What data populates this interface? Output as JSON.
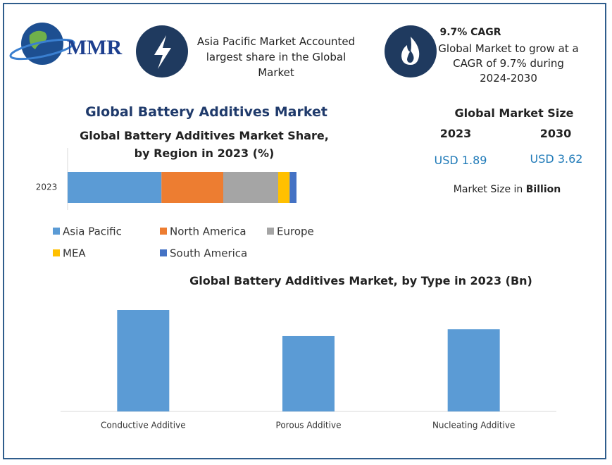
{
  "logo": "MMR",
  "highlights": [
    {
      "text": "Asia Pacific Market Accounted largest share in the Global Market"
    },
    {
      "title": "9.7% CAGR",
      "text": "Global Market to grow at a CAGR of 9.7% during 2024-2030"
    }
  ],
  "heading": "Global Battery Additives Market",
  "market_size": {
    "title": "Global Market Size",
    "years": [
      "2023",
      "2030"
    ],
    "values": [
      "USD 1.89",
      "USD 3.62"
    ],
    "unit_prefix": "Market Size in",
    "unit": "Billion"
  },
  "chart_data": [
    {
      "type": "stacked_bar",
      "title": "Global Battery Additives Market Share, by Region in 2023 (%)",
      "categories": [
        "2023"
      ],
      "series": [
        {
          "name": "Asia Pacific",
          "color": "#5b9bd5",
          "values": [
            41
          ]
        },
        {
          "name": "North America",
          "color": "#ed7d31",
          "values": [
            27
          ]
        },
        {
          "name": "Europe",
          "color": "#a5a5a5",
          "values": [
            24
          ]
        },
        {
          "name": "MEA",
          "color": "#ffc000",
          "values": [
            5
          ]
        },
        {
          "name": "South America",
          "color": "#4472c4",
          "values": [
            3
          ]
        }
      ]
    },
    {
      "type": "bar",
      "title": "Global Battery Additives Market, by Type in 2023 (Bn)",
      "categories": [
        "Conductive Additive",
        "Porous Additive",
        "Nucleating Additive"
      ],
      "values": [
        0.74,
        0.55,
        0.6
      ],
      "color": "#5b9bd5"
    }
  ]
}
